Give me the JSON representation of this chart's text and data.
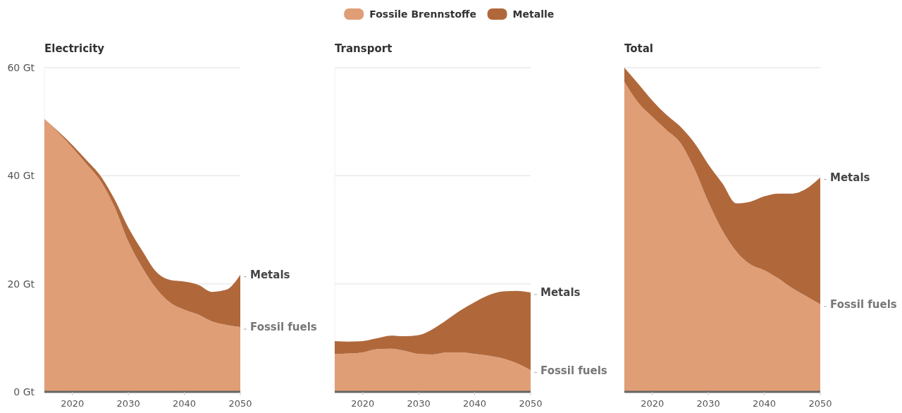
{
  "chart_data": [
    {
      "type": "area",
      "stacked": true,
      "title": "Electricity",
      "x": [
        2015,
        2017.5,
        2020,
        2022.5,
        2025,
        2027.5,
        2030,
        2032.5,
        2035,
        2037.5,
        2040,
        2042.5,
        2045,
        2047.5,
        2050
      ],
      "xlim": [
        2015,
        2050
      ],
      "xticks": [
        2020,
        2030,
        2040,
        2050
      ],
      "ylim": [
        0,
        60
      ],
      "yticks": [
        {
          "value": 0,
          "label": "0 Gt"
        },
        {
          "value": 20,
          "label": "20 Gt"
        },
        {
          "value": 40,
          "label": "40 Gt"
        },
        {
          "value": 60,
          "label": "60 Gt"
        }
      ],
      "grid": "y",
      "legend": "top",
      "series": [
        {
          "name": "Fossile Brennstoffe",
          "color": "#e09e76",
          "values": [
            50.5,
            48.0,
            45.2,
            42.2,
            39.1,
            34.3,
            27.8,
            23.0,
            19.1,
            16.5,
            15.2,
            14.3,
            13.0,
            12.4,
            12.0
          ]
        },
        {
          "name": "Metalle",
          "color": "#b0683b",
          "values": [
            0,
            0.2,
            0.5,
            0.7,
            0.9,
            1.4,
            2.6,
            3.1,
            3.1,
            4.2,
            5.2,
            5.5,
            5.5,
            6.5,
            9.7
          ]
        }
      ],
      "annotations": [
        "Metals",
        "Fossil fuels"
      ]
    },
    {
      "type": "area",
      "stacked": true,
      "title": "Transport",
      "x": [
        2015,
        2017.5,
        2020,
        2022.5,
        2025,
        2027.5,
        2030,
        2032.5,
        2035,
        2037.5,
        2040,
        2042.5,
        2045,
        2047.5,
        2050
      ],
      "xlim": [
        2015,
        2050
      ],
      "xticks": [
        2020,
        2030,
        2040,
        2050
      ],
      "ylim": [
        0,
        60
      ],
      "yticks": [
        {
          "value": 0,
          "label": null
        },
        {
          "value": 20,
          "label": null
        },
        {
          "value": 40,
          "label": null
        },
        {
          "value": 60,
          "label": null
        }
      ],
      "grid": "y",
      "tick_labels": "x",
      "series": [
        {
          "color": "#e09e76",
          "values": [
            7.0,
            7.1,
            7.3,
            7.9,
            8.0,
            7.6,
            7.0,
            6.9,
            7.3,
            7.3,
            7.0,
            6.7,
            6.2,
            5.3,
            4.0
          ]
        },
        {
          "color": "#b0683b",
          "values": [
            2.4,
            2.2,
            2.1,
            2.0,
            2.4,
            2.7,
            3.5,
            4.7,
            6.0,
            7.8,
            9.6,
            11.2,
            12.4,
            13.4,
            14.4
          ]
        }
      ],
      "annotations": [
        "Metals",
        "Fossil fuels"
      ]
    },
    {
      "type": "area",
      "stacked": true,
      "title": "Total",
      "x": [
        2015,
        2017.5,
        2020,
        2022.5,
        2025,
        2027.5,
        2030,
        2032.5,
        2035,
        2037.5,
        2040,
        2042.5,
        2045,
        2047.5,
        2050
      ],
      "xlim": [
        2015,
        2050
      ],
      "xticks": [
        2020,
        2030,
        2040,
        2050
      ],
      "ylim": [
        0,
        60
      ],
      "yticks": [
        {
          "value": 0,
          "label": null
        },
        {
          "value": 20,
          "label": null
        },
        {
          "value": 40,
          "label": null
        },
        {
          "value": 60,
          "label": null
        }
      ],
      "grid": "y",
      "tick_labels": "x",
      "series": [
        {
          "color": "#e09e76",
          "values": [
            57.4,
            53.5,
            50.9,
            48.5,
            46.1,
            41.3,
            35.2,
            29.9,
            26.0,
            23.6,
            22.5,
            21.0,
            19.2,
            17.7,
            16.2
          ]
        },
        {
          "color": "#b0683b",
          "values": [
            2.6,
            3.5,
            3.0,
            2.8,
            3.0,
            4.8,
            6.9,
            8.7,
            8.9,
            11.6,
            13.7,
            15.7,
            17.5,
            19.9,
            23.5
          ]
        }
      ],
      "annotations": [
        "Metals",
        "Fossil fuels"
      ]
    }
  ]
}
